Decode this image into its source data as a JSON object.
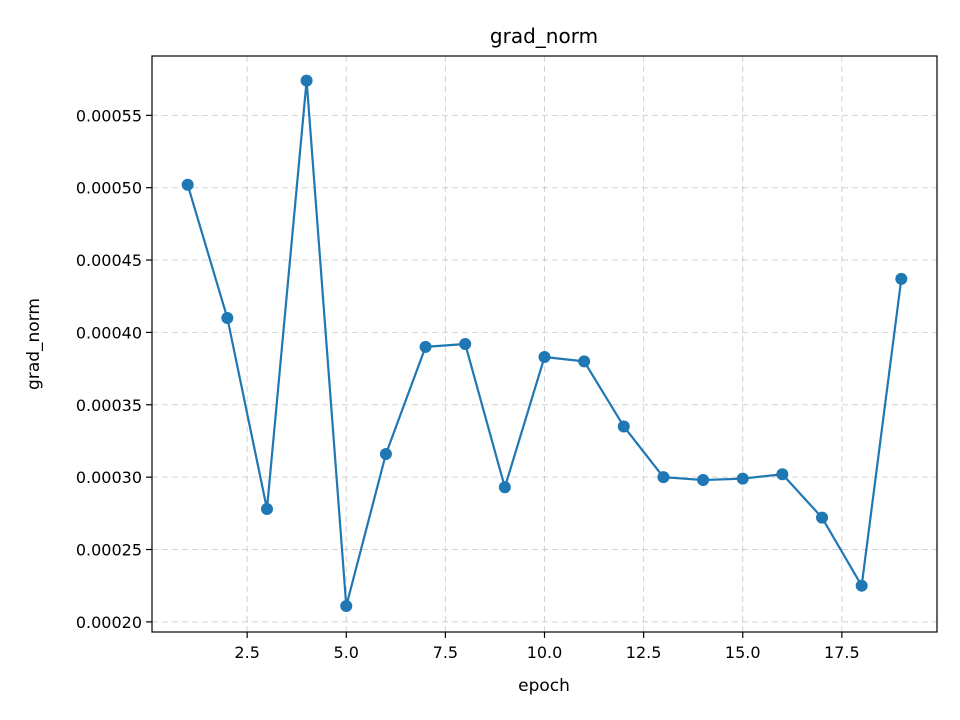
{
  "chart_data": {
    "type": "line",
    "title": "grad_norm",
    "xlabel": "epoch",
    "ylabel": "grad_norm",
    "xlim": [
      0.1,
      19.9
    ],
    "ylim": [
      0.000193,
      0.000591
    ],
    "xticks": [
      2.5,
      5.0,
      7.5,
      10.0,
      12.5,
      15.0,
      17.5
    ],
    "xtick_labels": [
      "2.5",
      "5.0",
      "7.5",
      "10.0",
      "12.5",
      "15.0",
      "17.5"
    ],
    "yticks": [
      0.0002,
      0.00025,
      0.0003,
      0.00035,
      0.0004,
      0.00045,
      0.0005,
      0.00055
    ],
    "ytick_labels": [
      "0.00020",
      "0.00025",
      "0.00030",
      "0.00035",
      "0.00040",
      "0.00045",
      "0.00050",
      "0.00055"
    ],
    "grid": true,
    "color": "#1f77b4",
    "series": [
      {
        "x": [
          1,
          2,
          3,
          4,
          5,
          6,
          7,
          8,
          9,
          10,
          11,
          12,
          13,
          14,
          15,
          16,
          17,
          18,
          19
        ],
        "values": [
          0.000502,
          0.00041,
          0.000278,
          0.000574,
          0.000211,
          0.000316,
          0.00039,
          0.000392,
          0.000293,
          0.000383,
          0.00038,
          0.000335,
          0.0003,
          0.000298,
          0.000299,
          0.000302,
          0.000272,
          0.000225,
          0.000437
        ]
      }
    ]
  }
}
